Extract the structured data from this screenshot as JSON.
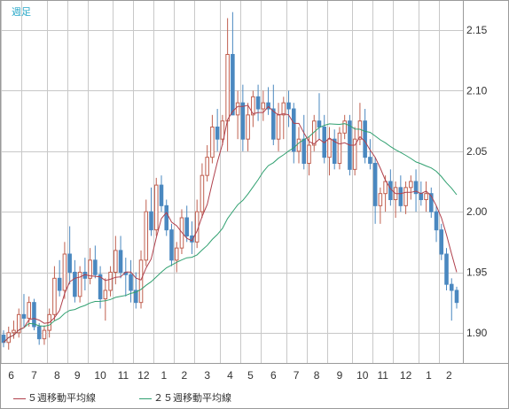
{
  "period_label": "週足",
  "legend": [
    {
      "label": "５週移動平均線",
      "color": "#b0404c"
    },
    {
      "label": "２５週移動平均線",
      "color": "#30a070"
    }
  ],
  "colors": {
    "up": "#c06050",
    "down": "#4a88c0",
    "grid": "#c8c8c8",
    "axis_text": "#333333"
  },
  "chart_data": {
    "type": "candlestick",
    "ylim": [
      1.875,
      2.175
    ],
    "yticks": [
      1.9,
      1.95,
      2.0,
      2.05,
      2.1,
      2.15
    ],
    "month_labels": [
      "6",
      "7",
      "8",
      "9",
      "10",
      "11",
      "12",
      "1",
      "2",
      "3",
      "4",
      "5",
      "6",
      "7",
      "8",
      "9",
      "10",
      "11",
      "12",
      "1",
      "2"
    ],
    "month_start_index": [
      0,
      4,
      9,
      13,
      17,
      22,
      26,
      30,
      34,
      38,
      43,
      47,
      51,
      56,
      60,
      64,
      69,
      73,
      77,
      82,
      86
    ],
    "candles": [
      [
        1.898,
        1.902,
        1.888,
        1.892
      ],
      [
        1.892,
        1.905,
        1.886,
        1.9
      ],
      [
        1.9,
        1.91,
        1.895,
        1.902
      ],
      [
        1.9,
        1.92,
        1.896,
        1.915
      ],
      [
        1.915,
        1.932,
        1.905,
        1.912
      ],
      [
        1.912,
        1.93,
        1.905,
        1.925
      ],
      [
        1.925,
        1.928,
        1.902,
        1.905
      ],
      [
        1.905,
        1.908,
        1.89,
        1.895
      ],
      [
        1.895,
        1.906,
        1.89,
        1.902
      ],
      [
        1.902,
        1.92,
        1.896,
        1.915
      ],
      [
        1.915,
        1.955,
        1.91,
        1.945
      ],
      [
        1.945,
        1.96,
        1.93,
        1.935
      ],
      [
        1.935,
        1.975,
        1.928,
        1.965
      ],
      [
        1.965,
        1.988,
        1.94,
        1.95
      ],
      [
        1.95,
        1.96,
        1.925,
        1.93
      ],
      [
        1.93,
        1.955,
        1.925,
        1.95
      ],
      [
        1.95,
        1.962,
        1.935,
        1.945
      ],
      [
        1.945,
        1.97,
        1.94,
        1.96
      ],
      [
        1.96,
        1.972,
        1.945,
        1.948
      ],
      [
        1.948,
        1.955,
        1.92,
        1.928
      ],
      [
        1.928,
        1.945,
        1.91,
        1.935
      ],
      [
        1.935,
        1.955,
        1.93,
        1.95
      ],
      [
        1.95,
        1.98,
        1.94,
        1.968
      ],
      [
        1.968,
        1.98,
        1.945,
        1.95
      ],
      [
        1.95,
        1.962,
        1.93,
        1.948
      ],
      [
        1.948,
        1.96,
        1.925,
        1.935
      ],
      [
        1.935,
        1.95,
        1.92,
        1.925
      ],
      [
        1.925,
        1.968,
        1.92,
        1.96
      ],
      [
        1.96,
        2.01,
        1.955,
        2.0
      ],
      [
        2.0,
        2.02,
        1.98,
        1.985
      ],
      [
        1.985,
        2.028,
        1.98,
        2.022
      ],
      [
        2.022,
        2.03,
        2.0,
        2.005
      ],
      [
        2.005,
        2.01,
        1.98,
        1.985
      ],
      [
        1.985,
        1.99,
        1.955,
        1.96
      ],
      [
        1.96,
        1.975,
        1.95,
        1.97
      ],
      [
        1.97,
        2.002,
        1.965,
        1.995
      ],
      [
        1.995,
        2.005,
        1.975,
        1.98
      ],
      [
        1.98,
        1.992,
        1.965,
        1.975
      ],
      [
        1.975,
        2.01,
        1.97,
        2.0
      ],
      [
        2.0,
        2.04,
        1.995,
        2.03
      ],
      [
        2.03,
        2.055,
        2.025,
        2.045
      ],
      [
        2.045,
        2.08,
        2.04,
        2.07
      ],
      [
        2.07,
        2.085,
        2.05,
        2.06
      ],
      [
        2.06,
        2.08,
        2.055,
        2.075
      ],
      [
        2.075,
        2.16,
        2.05,
        2.13
      ],
      [
        2.13,
        2.165,
        2.08,
        2.08
      ],
      [
        2.08,
        2.1,
        2.06,
        2.09
      ],
      [
        2.09,
        2.105,
        2.05,
        2.06
      ],
      [
        2.06,
        2.09,
        2.05,
        2.08
      ],
      [
        2.08,
        2.1,
        2.07,
        2.095
      ],
      [
        2.095,
        2.105,
        2.075,
        2.085
      ],
      [
        2.085,
        2.1,
        2.075,
        2.09
      ],
      [
        2.09,
        2.103,
        2.08,
        2.085
      ],
      [
        2.085,
        2.105,
        2.055,
        2.06
      ],
      [
        2.06,
        2.09,
        2.05,
        2.08
      ],
      [
        2.08,
        2.095,
        2.06,
        2.09
      ],
      [
        2.09,
        2.1,
        2.07,
        2.085
      ],
      [
        2.085,
        2.09,
        2.04,
        2.05
      ],
      [
        2.05,
        2.07,
        2.04,
        2.06
      ],
      [
        2.06,
        2.08,
        2.035,
        2.04
      ],
      [
        2.04,
        2.062,
        2.03,
        2.055
      ],
      [
        2.055,
        2.08,
        2.05,
        2.075
      ],
      [
        2.075,
        2.098,
        2.06,
        2.07
      ],
      [
        2.07,
        2.08,
        2.04,
        2.045
      ],
      [
        2.045,
        2.07,
        2.03,
        2.06
      ],
      [
        2.06,
        2.068,
        2.035,
        2.04
      ],
      [
        2.04,
        2.07,
        2.035,
        2.065
      ],
      [
        2.065,
        2.08,
        2.06,
        2.075
      ],
      [
        2.075,
        2.08,
        2.03,
        2.035
      ],
      [
        2.035,
        2.07,
        2.03,
        2.06
      ],
      [
        2.06,
        2.09,
        2.055,
        2.075
      ],
      [
        2.075,
        2.085,
        2.04,
        2.045
      ],
      [
        2.045,
        2.06,
        2.035,
        2.04
      ],
      [
        2.04,
        2.045,
        1.99,
        2.005
      ],
      [
        2.005,
        2.02,
        1.99,
        2.015
      ],
      [
        2.015,
        2.03,
        2.0,
        2.025
      ],
      [
        2.025,
        2.035,
        2.005,
        2.01
      ],
      [
        2.01,
        2.025,
        1.995,
        2.02
      ],
      [
        2.02,
        2.03,
        2.0,
        2.005
      ],
      [
        2.005,
        2.025,
        1.998,
        2.02
      ],
      [
        2.02,
        2.03,
        2.01,
        2.025
      ],
      [
        2.025,
        2.035,
        2.0,
        2.015
      ],
      [
        2.015,
        2.025,
        2.005,
        2.01
      ],
      [
        2.01,
        2.025,
        2.0,
        2.015
      ],
      [
        2.015,
        2.02,
        1.995,
        2.0
      ],
      [
        2.0,
        2.005,
        1.975,
        1.985
      ],
      [
        1.985,
        1.99,
        1.96,
        1.965
      ],
      [
        1.965,
        1.97,
        1.935,
        1.94
      ],
      [
        1.94,
        1.945,
        1.91,
        1.935
      ],
      [
        1.935,
        1.938,
        1.92,
        1.925
      ]
    ]
  }
}
